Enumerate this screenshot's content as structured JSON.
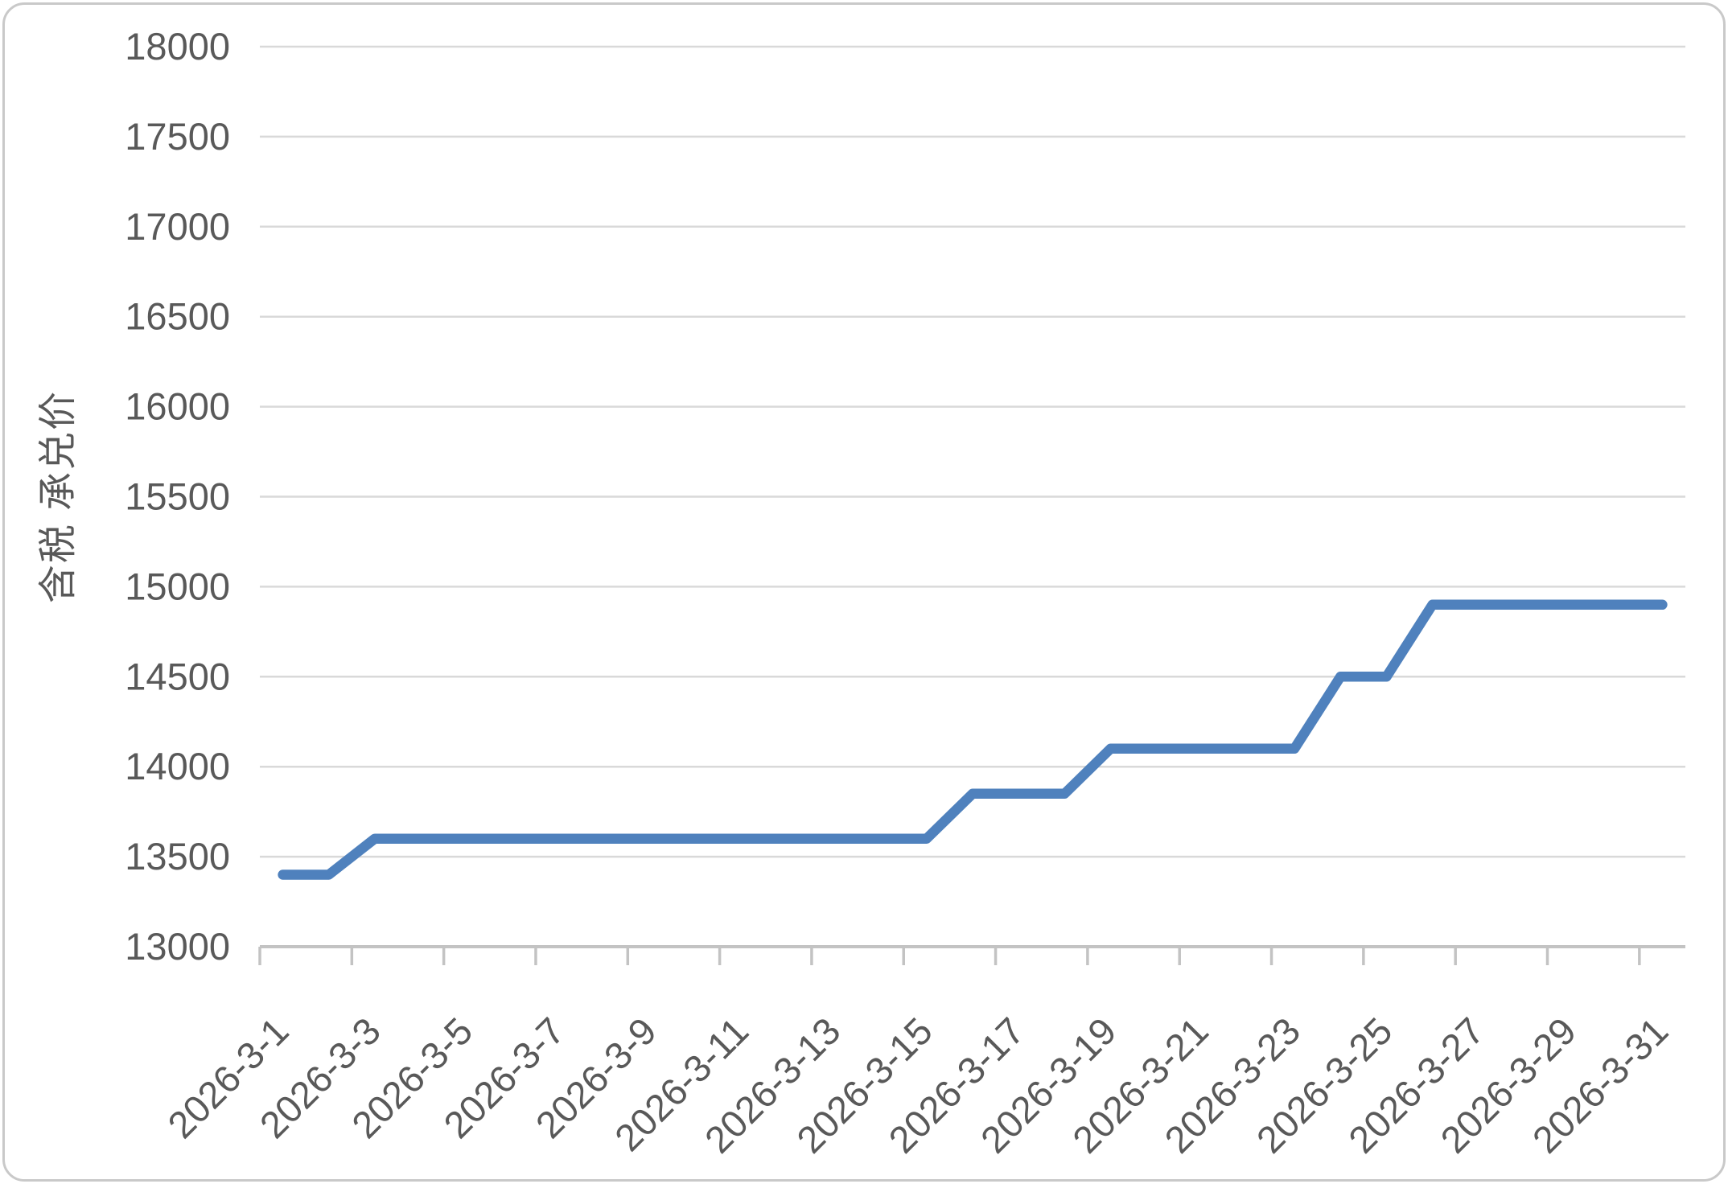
{
  "chart_data": {
    "type": "line",
    "title": "",
    "xlabel": "",
    "ylabel": "含税 承兑价",
    "x_categories": [
      "2026-3-1",
      "2026-3-2",
      "2026-3-3",
      "2026-3-4",
      "2026-3-5",
      "2026-3-6",
      "2026-3-7",
      "2026-3-8",
      "2026-3-9",
      "2026-3-10",
      "2026-3-11",
      "2026-3-12",
      "2026-3-13",
      "2026-3-14",
      "2026-3-15",
      "2026-3-16",
      "2026-3-17",
      "2026-3-18",
      "2026-3-19",
      "2026-3-20",
      "2026-3-21",
      "2026-3-22",
      "2026-3-23",
      "2026-3-24",
      "2026-3-25",
      "2026-3-26",
      "2026-3-27",
      "2026-3-28",
      "2026-3-29",
      "2026-3-30",
      "2026-3-31"
    ],
    "series": [
      {
        "name": "含税 承兑价",
        "values": [
          13400,
          13400,
          13600,
          13600,
          13600,
          13600,
          13600,
          13600,
          13600,
          13600,
          13600,
          13600,
          13600,
          13600,
          13600,
          13850,
          13850,
          13850,
          14100,
          14100,
          14100,
          14100,
          14100,
          14500,
          14500,
          14900,
          14900,
          14900,
          14900,
          14900,
          14900
        ]
      }
    ],
    "visible_x_tick_labels": [
      "2026-3-1",
      "2026-3-3",
      "2026-3-5",
      "2026-3-7",
      "2026-3-9",
      "2026-3-11",
      "2026-3-13",
      "2026-3-15",
      "2026-3-17",
      "2026-3-19",
      "2026-3-21",
      "2026-3-23",
      "2026-3-25",
      "2026-3-27",
      "2026-3-29",
      "2026-3-31"
    ],
    "x_tick_label_interval": 2,
    "ylim": [
      13000,
      18000
    ],
    "ytick_step": 500,
    "grid": "horizontal",
    "legend_position": "none",
    "x_label_rotation_deg": 45,
    "colors": {
      "line": "#4f81bd",
      "gridline": "#d9d9d9",
      "axis_line": "#c3c3c3",
      "text": "#595959",
      "frame_border": "#c9c9c9",
      "background": "#ffffff"
    }
  }
}
